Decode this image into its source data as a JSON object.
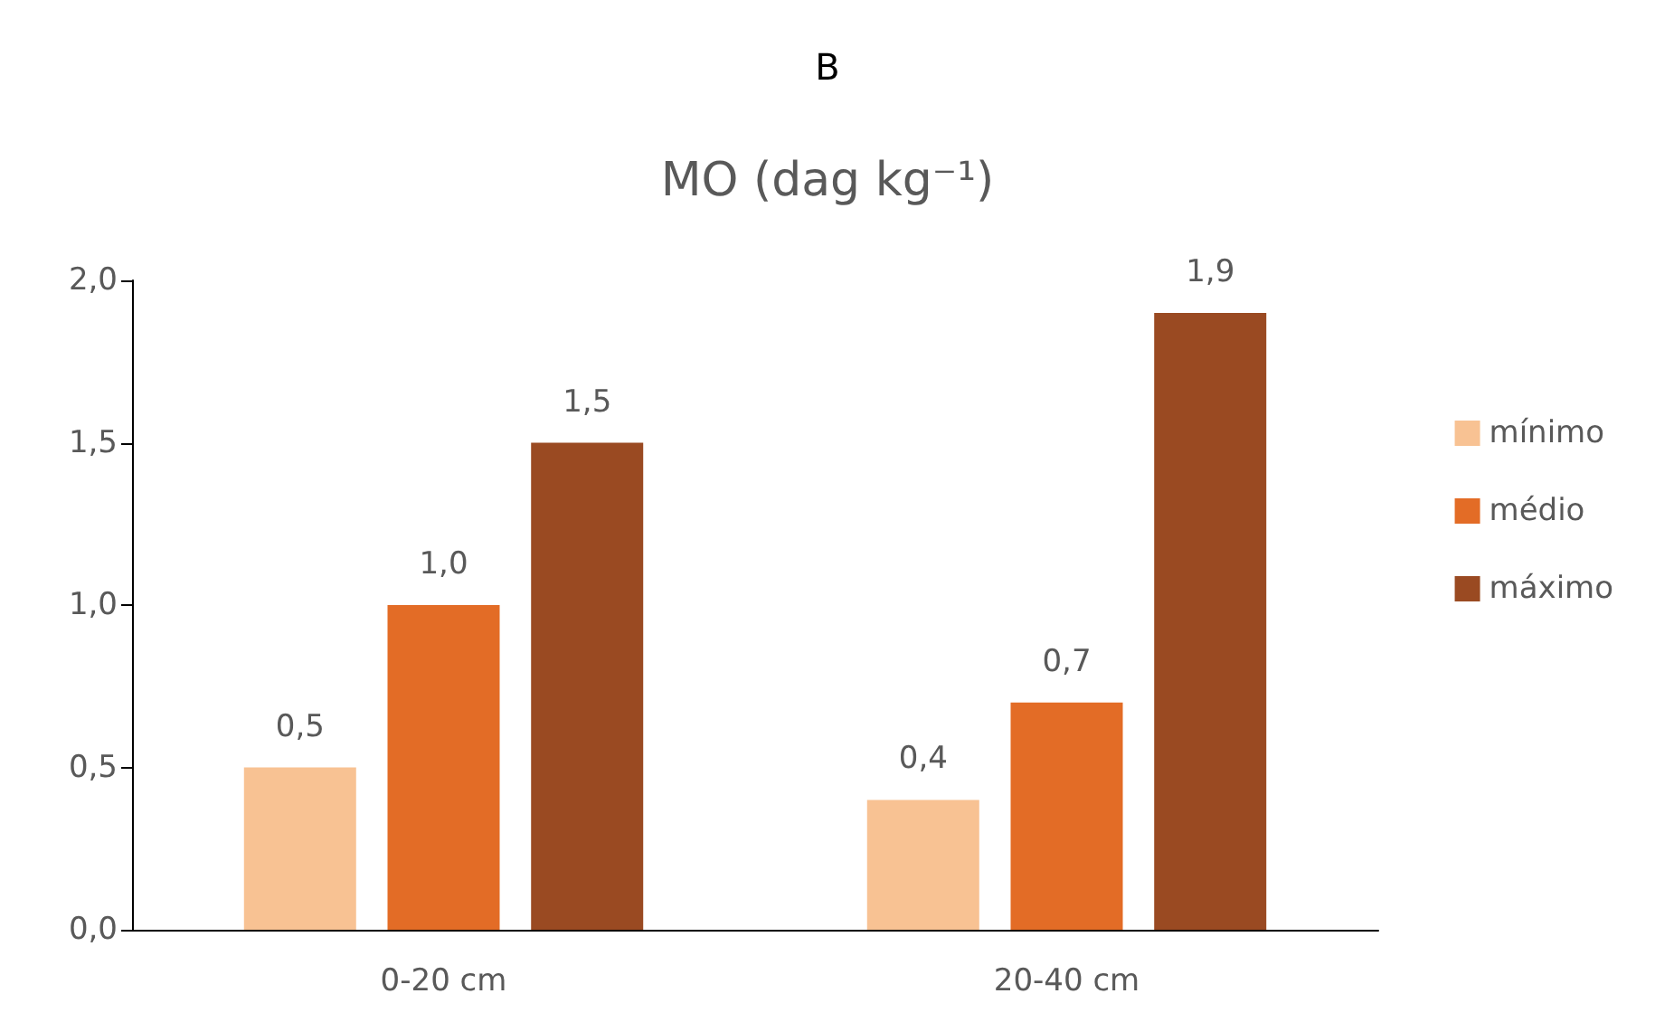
{
  "chart_data": {
    "type": "bar",
    "title": "B",
    "subtitle": "MO (dag kg⁻¹)",
    "categories": [
      "0-20 cm",
      "20-40 cm"
    ],
    "series": [
      {
        "name": "mínimo",
        "color": "#f8c293",
        "values": [
          0.5,
          0.4
        ],
        "value_labels": [
          "0,5",
          "0,4"
        ]
      },
      {
        "name": "médio",
        "color": "#e36c26",
        "values": [
          1.0,
          0.7
        ],
        "value_labels": [
          "1,0",
          "0,7"
        ]
      },
      {
        "name": "máximo",
        "color": "#9a4a22",
        "values": [
          1.5,
          1.9
        ],
        "value_labels": [
          "1,5",
          "1,9"
        ]
      }
    ],
    "ylim": [
      0,
      2
    ],
    "yticks": [
      {
        "value": 0,
        "label": "0,0"
      },
      {
        "value": 0.5,
        "label": "0,5"
      },
      {
        "value": 1,
        "label": "1,0"
      },
      {
        "value": 1.5,
        "label": "1,5"
      },
      {
        "value": 2,
        "label": "2,0"
      }
    ],
    "grid": false,
    "legend": "right"
  }
}
